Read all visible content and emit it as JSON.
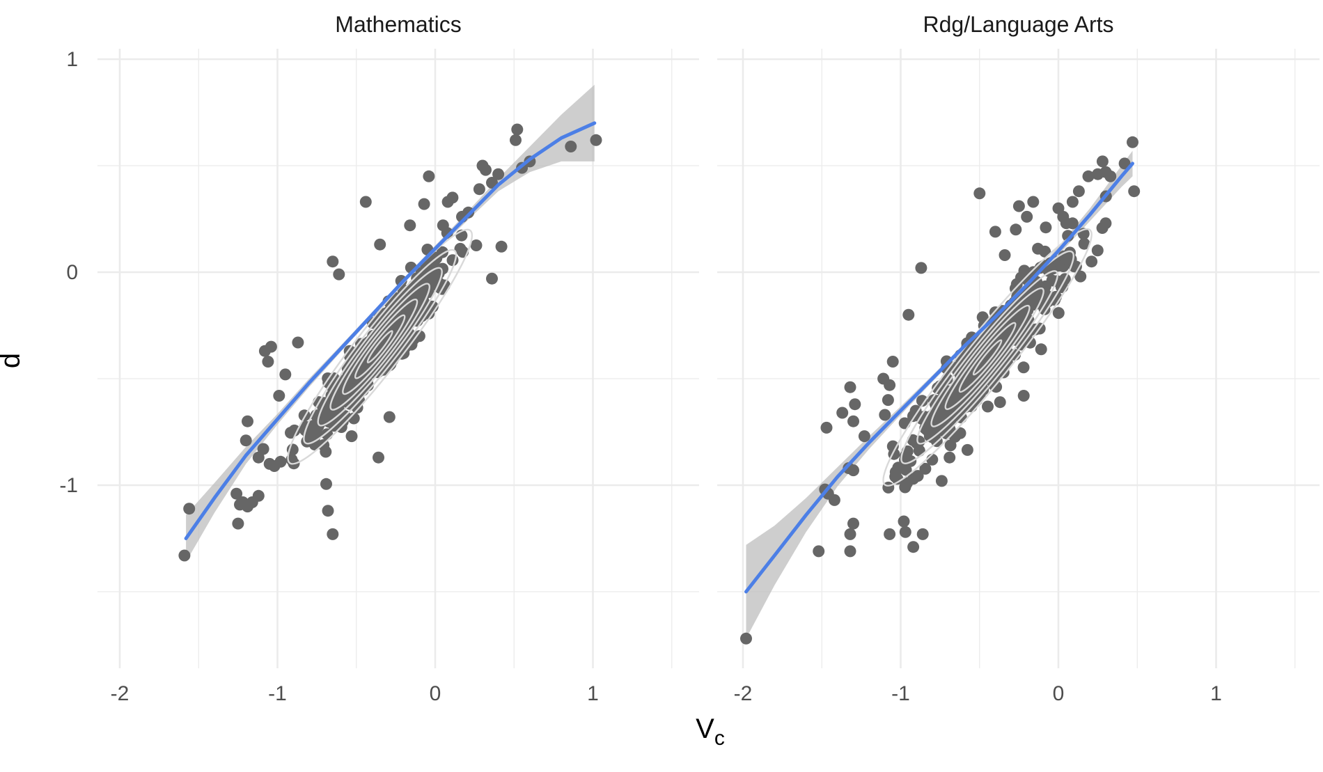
{
  "chart_data": {
    "type": "scatter",
    "facet_variable": "subject",
    "xlabel": "V",
    "xlabel_subscript": "c",
    "ylabel": "d",
    "xlim": [
      -2.2,
      1.7
    ],
    "ylim": [
      -1.85,
      1.05
    ],
    "x_ticks": [
      -2,
      -1,
      0,
      1
    ],
    "x_tick_labels": [
      "-2",
      "-1",
      "0",
      "1"
    ],
    "y_ticks": [
      -1,
      0,
      1
    ],
    "y_tick_labels": [
      "-1",
      "0",
      "1"
    ],
    "grid": true,
    "legend": "none",
    "colors": {
      "points": "#666666",
      "smooth_line": "#4C7FE6",
      "confidence_band": "#BEBEBE",
      "density_contour": "#D9D9D9",
      "grid": "#EBEBEB",
      "text": "#4D4D4D"
    },
    "layers": [
      "points",
      "density_contours",
      "smooth_line_with_confidence_band"
    ],
    "panels": [
      {
        "title": "Mathematics",
        "bulk_distribution": {
          "x_center": -0.35,
          "y_center": -0.35,
          "x_sd": 0.22,
          "y_sd": 0.21,
          "correlation": 0.92,
          "n_points": 380
        },
        "outlier_points": [
          [
            -1.59,
            -1.33
          ],
          [
            -1.56,
            -1.11
          ],
          [
            -1.25,
            -1.18
          ],
          [
            -1.26,
            -1.04
          ],
          [
            -1.22,
            -1.08
          ],
          [
            -1.19,
            -1.1
          ],
          [
            -1.16,
            -1.08
          ],
          [
            -1.12,
            -1.05
          ],
          [
            -0.68,
            -1.12
          ],
          [
            -0.65,
            -1.23
          ],
          [
            -1.19,
            -0.7
          ],
          [
            -1.2,
            -0.79
          ],
          [
            -1.12,
            -0.87
          ],
          [
            -1.09,
            -0.83
          ],
          [
            -1.05,
            -0.9
          ],
          [
            -1.02,
            -0.91
          ],
          [
            -0.98,
            -0.89
          ],
          [
            -0.91,
            -0.88
          ],
          [
            -1.08,
            -0.37
          ],
          [
            -1.04,
            -0.35
          ],
          [
            -1.06,
            -0.42
          ],
          [
            -0.99,
            -0.58
          ],
          [
            -0.95,
            -0.48
          ],
          [
            -0.87,
            -0.33
          ],
          [
            -0.65,
            0.05
          ],
          [
            -0.61,
            -0.01
          ],
          [
            -0.44,
            0.33
          ],
          [
            -0.53,
            -0.77
          ],
          [
            -0.36,
            -0.87
          ],
          [
            -0.29,
            -0.68
          ],
          [
            -0.2,
            -0.38
          ],
          [
            -0.15,
            -0.34
          ],
          [
            -0.1,
            -0.3
          ],
          [
            -0.04,
            0.45
          ],
          [
            -0.07,
            0.32
          ],
          [
            0.08,
            0.33
          ],
          [
            0.11,
            0.35
          ],
          [
            0.17,
            0.26
          ],
          [
            0.21,
            0.28
          ],
          [
            0.28,
            0.39
          ],
          [
            0.3,
            0.5
          ],
          [
            0.32,
            0.48
          ],
          [
            0.36,
            0.42
          ],
          [
            0.36,
            -0.03
          ],
          [
            0.4,
            0.46
          ],
          [
            0.42,
            0.12
          ],
          [
            0.51,
            0.62
          ],
          [
            0.52,
            0.67
          ],
          [
            0.55,
            0.49
          ],
          [
            0.6,
            0.52
          ],
          [
            0.86,
            0.59
          ],
          [
            1.02,
            0.62
          ],
          [
            -0.35,
            0.13
          ],
          [
            -0.16,
            0.22
          ],
          [
            0.05,
            0.22
          ]
        ],
        "smooth_line": {
          "x": [
            -1.58,
            -1.4,
            -1.2,
            -1.0,
            -0.8,
            -0.6,
            -0.4,
            -0.2,
            0.0,
            0.2,
            0.4,
            0.6,
            0.8,
            1.01
          ],
          "y": [
            -1.25,
            -1.06,
            -0.86,
            -0.69,
            -0.52,
            -0.36,
            -0.2,
            -0.04,
            0.11,
            0.26,
            0.41,
            0.53,
            0.63,
            0.7
          ],
          "ci_half_width": [
            0.11,
            0.07,
            0.04,
            0.025,
            0.02,
            0.015,
            0.012,
            0.012,
            0.015,
            0.02,
            0.03,
            0.06,
            0.11,
            0.18
          ]
        }
      },
      {
        "title": "Rdg/Language Arts",
        "bulk_distribution": {
          "x_center": -0.45,
          "y_center": -0.4,
          "x_sd": 0.25,
          "y_sd": 0.23,
          "correlation": 0.93,
          "n_points": 420
        },
        "outlier_points": [
          [
            -1.98,
            -1.72
          ],
          [
            -1.52,
            -1.31
          ],
          [
            -1.48,
            -1.02
          ],
          [
            -1.46,
            -1.04
          ],
          [
            -1.42,
            -1.07
          ],
          [
            -1.32,
            -1.31
          ],
          [
            -1.32,
            -1.23
          ],
          [
            -1.3,
            -1.18
          ],
          [
            -1.07,
            -1.23
          ],
          [
            -0.98,
            -1.17
          ],
          [
            -0.97,
            -1.22
          ],
          [
            -0.92,
            -1.29
          ],
          [
            -0.86,
            -1.23
          ],
          [
            -1.3,
            -0.93
          ],
          [
            -1.33,
            -0.92
          ],
          [
            -1.47,
            -0.73
          ],
          [
            -1.37,
            -0.66
          ],
          [
            -1.32,
            -0.54
          ],
          [
            -1.29,
            -0.62
          ],
          [
            -1.3,
            -0.7
          ],
          [
            -1.23,
            -0.77
          ],
          [
            -1.11,
            -0.5
          ],
          [
            -1.07,
            -0.53
          ],
          [
            -1.08,
            -0.6
          ],
          [
            -1.1,
            -0.67
          ],
          [
            -1.05,
            -0.42
          ],
          [
            -0.95,
            -0.2
          ],
          [
            -0.87,
            0.02
          ],
          [
            -0.5,
            0.37
          ],
          [
            -0.4,
            0.19
          ],
          [
            -0.25,
            0.31
          ],
          [
            -0.2,
            0.26
          ],
          [
            -0.16,
            0.33
          ],
          [
            -0.08,
            0.21
          ],
          [
            0.0,
            0.3
          ],
          [
            0.03,
            0.26
          ],
          [
            0.05,
            0.23
          ],
          [
            0.13,
            0.38
          ],
          [
            0.16,
            0.18
          ],
          [
            0.19,
            0.45
          ],
          [
            0.25,
            0.46
          ],
          [
            0.28,
            0.52
          ],
          [
            0.3,
            0.47
          ],
          [
            0.33,
            0.45
          ],
          [
            0.47,
            0.61
          ],
          [
            0.48,
            0.38
          ],
          [
            0.21,
            0.05
          ],
          [
            0.14,
            -0.02
          ],
          [
            -0.22,
            -0.58
          ],
          [
            -0.37,
            -0.61
          ],
          [
            -0.58,
            -0.63
          ],
          [
            -0.69,
            -0.87
          ],
          [
            -0.8,
            -0.88
          ],
          [
            -0.92,
            -0.97
          ],
          [
            -0.96,
            -0.99
          ],
          [
            -0.74,
            -0.98
          ],
          [
            -0.13,
            0.11
          ],
          [
            -0.09,
            0.03
          ],
          [
            0.08,
            0.06
          ],
          [
            -0.34,
            0.08
          ],
          [
            -0.27,
            0.2
          ],
          [
            0.09,
            0.33
          ],
          [
            0.42,
            0.51
          ]
        ],
        "smooth_line": {
          "x": [
            -1.98,
            -1.8,
            -1.6,
            -1.4,
            -1.2,
            -1.0,
            -0.8,
            -0.6,
            -0.4,
            -0.2,
            0.0,
            0.2,
            0.4,
            0.47
          ],
          "y": [
            -1.5,
            -1.33,
            -1.14,
            -0.96,
            -0.8,
            -0.65,
            -0.5,
            -0.35,
            -0.21,
            -0.06,
            0.1,
            0.27,
            0.45,
            0.51
          ],
          "ci_half_width": [
            0.22,
            0.14,
            0.08,
            0.045,
            0.03,
            0.02,
            0.015,
            0.012,
            0.012,
            0.015,
            0.02,
            0.03,
            0.05,
            0.06
          ]
        }
      }
    ]
  }
}
